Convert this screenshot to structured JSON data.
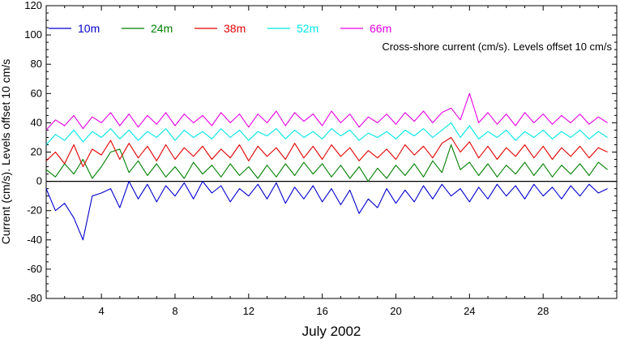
{
  "chart_data": {
    "type": "line",
    "annotation": "Cross-shore current (cm/s). Levels offset 10 cm/s",
    "xlabel": "July 2002",
    "ylabel": "Current (cm/s). Levels offset 10 cm/s",
    "xlim": [
      1,
      32
    ],
    "ylim": [
      -80,
      120
    ],
    "xticks": [
      4,
      8,
      12,
      16,
      20,
      24,
      28
    ],
    "yticks": [
      -80,
      -60,
      -40,
      -20,
      0,
      20,
      40,
      60,
      80,
      100,
      120
    ],
    "zero_line": 0,
    "grid": false,
    "legend_position": "top-left",
    "series": [
      {
        "name": "10m",
        "color": "#0000cd",
        "x": [
          1,
          1.5,
          2,
          2.5,
          3,
          3.5,
          4,
          4.5,
          5,
          5.5,
          6,
          6.5,
          7,
          7.5,
          8,
          8.5,
          9,
          9.5,
          10,
          10.5,
          11,
          11.5,
          12,
          12.5,
          13,
          13.5,
          14,
          14.5,
          15,
          15.5,
          16,
          16.5,
          17,
          17.5,
          18,
          18.5,
          19,
          19.5,
          20,
          20.5,
          21,
          21.5,
          22,
          22.5,
          23,
          23.5,
          24,
          24.5,
          25,
          25.5,
          26,
          26.5,
          27,
          27.5,
          28,
          28.5,
          29,
          29.5,
          30,
          30.5,
          31,
          31.5
        ],
        "y": [
          -5,
          -20,
          -15,
          -25,
          -40,
          -10,
          -8,
          -5,
          -18,
          0,
          -12,
          -2,
          -14,
          -3,
          -10,
          -1,
          -12,
          0,
          -8,
          -3,
          -14,
          -5,
          -10,
          -2,
          -12,
          -1,
          -15,
          -4,
          -12,
          -3,
          -14,
          -5,
          -16,
          -6,
          -22,
          -12,
          -18,
          -5,
          -15,
          -6,
          -14,
          -3,
          -12,
          -2,
          -10,
          -5,
          -14,
          -4,
          -12,
          -2,
          -10,
          -3,
          -12,
          -2,
          -10,
          -4,
          -12,
          -3,
          -10,
          -2,
          -8,
          -5
        ]
      },
      {
        "name": "24m",
        "color": "#008000",
        "x": [
          1,
          1.5,
          2,
          2.5,
          3,
          3.5,
          4,
          4.5,
          5,
          5.5,
          6,
          6.5,
          7,
          7.5,
          8,
          8.5,
          9,
          9.5,
          10,
          10.5,
          11,
          11.5,
          12,
          12.5,
          13,
          13.5,
          14,
          14.5,
          15,
          15.5,
          16,
          16.5,
          17,
          17.5,
          18,
          18.5,
          19,
          19.5,
          20,
          20.5,
          21,
          21.5,
          22,
          22.5,
          23,
          23.5,
          24,
          24.5,
          25,
          25.5,
          26,
          26.5,
          27,
          27.5,
          28,
          28.5,
          29,
          29.5,
          30,
          30.5,
          31,
          31.5
        ],
        "y": [
          8,
          3,
          12,
          5,
          15,
          2,
          10,
          20,
          22,
          6,
          14,
          4,
          12,
          3,
          10,
          2,
          13,
          5,
          11,
          3,
          12,
          4,
          10,
          2,
          11,
          3,
          12,
          4,
          13,
          5,
          12,
          3,
          11,
          2,
          10,
          0,
          9,
          2,
          11,
          4,
          12,
          3,
          14,
          6,
          25,
          8,
          13,
          4,
          12,
          3,
          11,
          5,
          13,
          4,
          12,
          3,
          11,
          5,
          12,
          4,
          13,
          8
        ]
      },
      {
        "name": "38m",
        "color": "#e00000",
        "x": [
          1,
          1.5,
          2,
          2.5,
          3,
          3.5,
          4,
          4.5,
          5,
          5.5,
          6,
          6.5,
          7,
          7.5,
          8,
          8.5,
          9,
          9.5,
          10,
          10.5,
          11,
          11.5,
          12,
          12.5,
          13,
          13.5,
          14,
          14.5,
          15,
          15.5,
          16,
          16.5,
          17,
          17.5,
          18,
          18.5,
          19,
          19.5,
          20,
          20.5,
          21,
          21.5,
          22,
          22.5,
          23,
          23.5,
          24,
          24.5,
          25,
          25.5,
          26,
          26.5,
          27,
          27.5,
          28,
          28.5,
          29,
          29.5,
          30,
          30.5,
          31,
          31.5
        ],
        "y": [
          14,
          20,
          12,
          25,
          10,
          22,
          18,
          28,
          15,
          26,
          16,
          24,
          14,
          25,
          15,
          23,
          17,
          24,
          15,
          22,
          16,
          25,
          14,
          24,
          17,
          23,
          15,
          26,
          16,
          24,
          15,
          25,
          17,
          23,
          14,
          21,
          16,
          22,
          15,
          25,
          18,
          24,
          16,
          26,
          30,
          20,
          27,
          16,
          24,
          15,
          23,
          17,
          25,
          16,
          24,
          15,
          23,
          17,
          24,
          16,
          23,
          20
        ]
      },
      {
        "name": "52m",
        "color": "#00e5e5",
        "x": [
          1,
          1.5,
          2,
          2.5,
          3,
          3.5,
          4,
          4.5,
          5,
          5.5,
          6,
          6.5,
          7,
          7.5,
          8,
          8.5,
          9,
          9.5,
          10,
          10.5,
          11,
          11.5,
          12,
          12.5,
          13,
          13.5,
          14,
          14.5,
          15,
          15.5,
          16,
          16.5,
          17,
          17.5,
          18,
          18.5,
          19,
          19.5,
          20,
          20.5,
          21,
          21.5,
          22,
          22.5,
          23,
          23.5,
          24,
          24.5,
          25,
          25.5,
          26,
          26.5,
          27,
          27.5,
          28,
          28.5,
          29,
          29.5,
          30,
          30.5,
          31,
          31.5
        ],
        "y": [
          25,
          32,
          28,
          35,
          27,
          34,
          30,
          36,
          29,
          35,
          28,
          34,
          30,
          36,
          28,
          35,
          30,
          34,
          29,
          36,
          30,
          35,
          28,
          34,
          31,
          36,
          29,
          35,
          30,
          34,
          29,
          36,
          31,
          35,
          28,
          33,
          30,
          34,
          29,
          35,
          31,
          36,
          30,
          35,
          40,
          30,
          38,
          29,
          34,
          30,
          35,
          28,
          34,
          30,
          35,
          29,
          34,
          30,
          35,
          29,
          34,
          30
        ]
      },
      {
        "name": "66m",
        "color": "#e600e6",
        "x": [
          1,
          1.5,
          2,
          2.5,
          3,
          3.5,
          4,
          4.5,
          5,
          5.5,
          6,
          6.5,
          7,
          7.5,
          8,
          8.5,
          9,
          9.5,
          10,
          10.5,
          11,
          11.5,
          12,
          12.5,
          13,
          13.5,
          14,
          14.5,
          15,
          15.5,
          16,
          16.5,
          17,
          17.5,
          18,
          18.5,
          19,
          19.5,
          20,
          20.5,
          21,
          21.5,
          22,
          22.5,
          23,
          23.5,
          24,
          24.5,
          25,
          25.5,
          26,
          26.5,
          27,
          27.5,
          28,
          28.5,
          29,
          29.5,
          30,
          30.5,
          31,
          31.5
        ],
        "y": [
          35,
          42,
          38,
          45,
          36,
          44,
          40,
          47,
          38,
          46,
          37,
          45,
          39,
          47,
          38,
          46,
          40,
          45,
          38,
          47,
          40,
          46,
          37,
          46,
          40,
          48,
          38,
          47,
          41,
          46,
          38,
          48,
          40,
          46,
          37,
          44,
          40,
          46,
          39,
          47,
          41,
          48,
          40,
          47,
          50,
          42,
          60,
          40,
          47,
          39,
          46,
          38,
          47,
          40,
          46,
          39,
          45,
          40,
          46,
          39,
          44,
          40
        ]
      }
    ]
  }
}
